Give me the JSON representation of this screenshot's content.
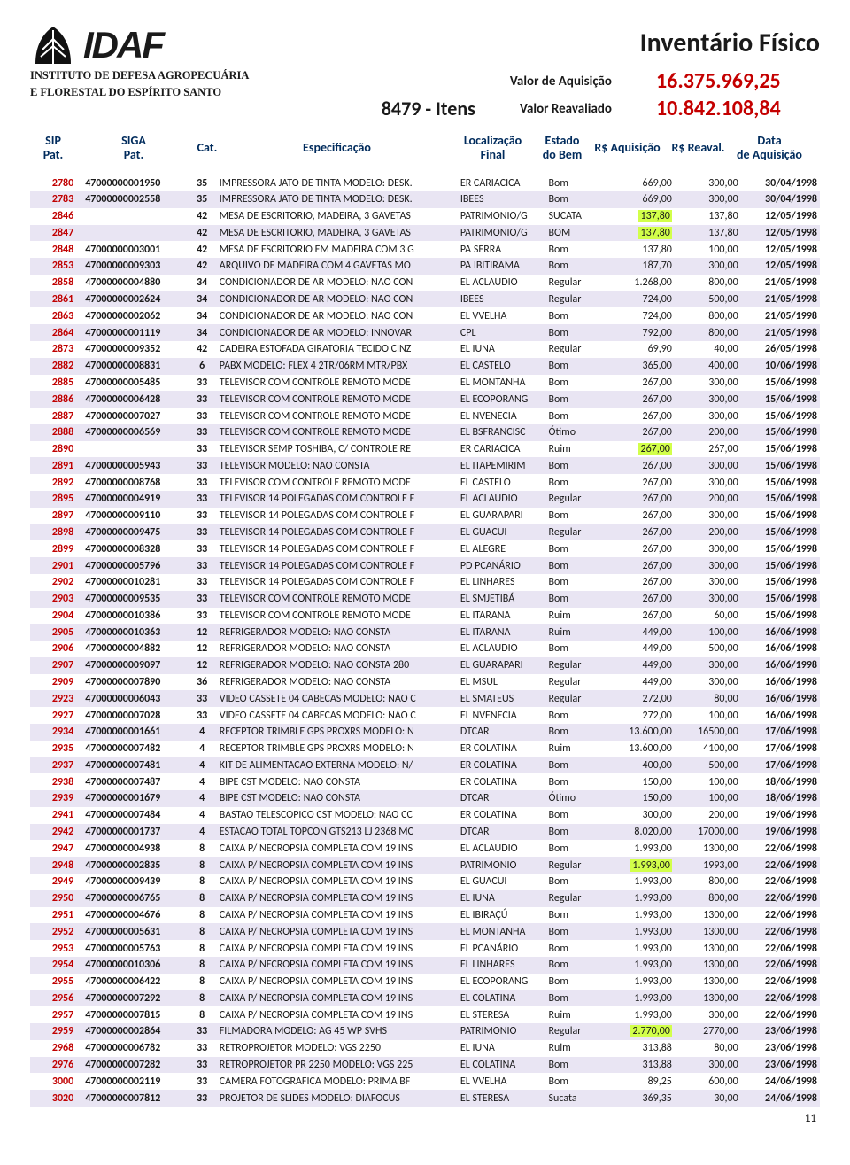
{
  "header": {
    "logo_text": "IDAF",
    "org_line1": "INSTITUTO DE DEFESA AGROPECUÁRIA",
    "org_line2": "E FLORESTAL DO ESPÍRITO SANTO",
    "main_title": "Inventário Físico",
    "itens_count": "8479 - Itens",
    "valor_aquisicao_label": "Valor de Aquisição",
    "valor_aquisicao": "16.375.969,25",
    "valor_reavaliado_label": "Valor Reavaliado",
    "valor_reavaliado": "10.842.108,84"
  },
  "columns": {
    "sip": "SIP Pat.",
    "siga": "SIGA Pat.",
    "cat": "Cat.",
    "esp": "Especificação",
    "loc": "Localização Final",
    "est": "Estado do Bem",
    "aq": "R$ Aquisição",
    "rv": "R$ Reaval.",
    "dt": "Data de Aquisição"
  },
  "page_number": "11",
  "highlight_color": "#d2ff4a",
  "rows": [
    {
      "sip": "2780",
      "siga": "47000000001950",
      "cat": "35",
      "esp": "IMPRESSORA JATO DE TINTA MODELO: DESK.",
      "loc": "ER CARIACICA",
      "est": "Bom",
      "aq": "669,00",
      "rv": "300,00",
      "dt": "30/04/1998"
    },
    {
      "sip": "2783",
      "siga": "47000000002558",
      "cat": "35",
      "esp": "IMPRESSORA JATO DE TINTA MODELO: DESK.",
      "loc": "IBEES",
      "est": "Bom",
      "aq": "669,00",
      "rv": "300,00",
      "dt": "30/04/1998"
    },
    {
      "sip": "2846",
      "siga": "",
      "cat": "42",
      "esp": "MESA DE ESCRITORIO, MADEIRA, 3 GAVETAS",
      "loc": "PATRIMONIO/G",
      "est": "SUCATA",
      "aq": "137,80",
      "rv": "137,80",
      "dt": "12/05/1998",
      "hl_aq": true
    },
    {
      "sip": "2847",
      "siga": "",
      "cat": "42",
      "esp": "MESA DE ESCRITORIO, MADEIRA, 3 GAVETAS",
      "loc": "PATRIMONIO/G",
      "est": "BOM",
      "aq": "137,80",
      "rv": "137,80",
      "dt": "12/05/1998",
      "hl_aq": true
    },
    {
      "sip": "2848",
      "siga": "47000000003001",
      "cat": "42",
      "esp": "MESA DE ESCRITORIO EM MADEIRA COM 3 G",
      "loc": "PA SERRA",
      "est": "Bom",
      "aq": "137,80",
      "rv": "100,00",
      "dt": "12/05/1998"
    },
    {
      "sip": "2853",
      "siga": "47000000009303",
      "cat": "42",
      "esp": "ARQUIVO DE MADEIRA COM 4 GAVETAS MO",
      "loc": "PA IBITIRAMA",
      "est": "Bom",
      "aq": "187,70",
      "rv": "300,00",
      "dt": "12/05/1998"
    },
    {
      "sip": "2858",
      "siga": "47000000004880",
      "cat": "34",
      "esp": "CONDICIONADOR DE AR MODELO: NAO CON",
      "loc": "EL ACLAUDIO",
      "est": "Regular",
      "aq": "1.268,00",
      "rv": "800,00",
      "dt": "21/05/1998"
    },
    {
      "sip": "2861",
      "siga": "47000000002624",
      "cat": "34",
      "esp": "CONDICIONADOR DE AR MODELO: NAO CON",
      "loc": "IBEES",
      "est": "Regular",
      "aq": "724,00",
      "rv": "500,00",
      "dt": "21/05/1998"
    },
    {
      "sip": "2863",
      "siga": "47000000002062",
      "cat": "34",
      "esp": "CONDICIONADOR DE AR MODELO: NAO CON",
      "loc": "EL VVELHA",
      "est": "Bom",
      "aq": "724,00",
      "rv": "800,00",
      "dt": "21/05/1998"
    },
    {
      "sip": "2864",
      "siga": "47000000001119",
      "cat": "34",
      "esp": "CONDICIONADOR DE AR MODELO: INNOVAR",
      "loc": "CPL",
      "est": "Bom",
      "aq": "792,00",
      "rv": "800,00",
      "dt": "21/05/1998"
    },
    {
      "sip": "2873",
      "siga": "47000000009352",
      "cat": "42",
      "esp": "CADEIRA ESTOFADA GIRATORIA TECIDO CINZ",
      "loc": "EL IUNA",
      "est": "Regular",
      "aq": "69,90",
      "rv": "40,00",
      "dt": "26/05/1998"
    },
    {
      "sip": "2882",
      "siga": "47000000008831",
      "cat": "6",
      "esp": "PABX MODELO: FLEX 4 2TR/06RM MTR/PBX",
      "loc": "EL CASTELO",
      "est": "Bom",
      "aq": "365,00",
      "rv": "400,00",
      "dt": "10/06/1998"
    },
    {
      "sip": "2885",
      "siga": "47000000005485",
      "cat": "33",
      "esp": "TELEVISOR COM CONTROLE REMOTO MODE",
      "loc": "EL MONTANHA",
      "est": "Bom",
      "aq": "267,00",
      "rv": "300,00",
      "dt": "15/06/1998"
    },
    {
      "sip": "2886",
      "siga": "47000000006428",
      "cat": "33",
      "esp": "TELEVISOR COM CONTROLE REMOTO MODE",
      "loc": "EL ECOPORANG",
      "est": "Bom",
      "aq": "267,00",
      "rv": "300,00",
      "dt": "15/06/1998"
    },
    {
      "sip": "2887",
      "siga": "47000000007027",
      "cat": "33",
      "esp": "TELEVISOR COM CONTROLE REMOTO MODE",
      "loc": "EL NVENECIA",
      "est": "Bom",
      "aq": "267,00",
      "rv": "300,00",
      "dt": "15/06/1998"
    },
    {
      "sip": "2888",
      "siga": "47000000006569",
      "cat": "33",
      "esp": "TELEVISOR COM CONTROLE REMOTO MODE",
      "loc": "EL BSFRANCISC",
      "est": "Ótimo",
      "aq": "267,00",
      "rv": "200,00",
      "dt": "15/06/1998"
    },
    {
      "sip": "2890",
      "siga": "",
      "cat": "33",
      "esp": "TELEVISOR SEMP TOSHIBA, C/ CONTROLE RE",
      "loc": "ER CARIACICA",
      "est": "Ruim",
      "aq": "267,00",
      "rv": "267,00",
      "dt": "15/06/1998",
      "hl_aq": true
    },
    {
      "sip": "2891",
      "siga": "47000000005943",
      "cat": "33",
      "esp": "TELEVISOR MODELO: NAO CONSTA",
      "loc": "EL ITAPEMIRIM",
      "est": "Bom",
      "aq": "267,00",
      "rv": "300,00",
      "dt": "15/06/1998"
    },
    {
      "sip": "2892",
      "siga": "47000000008768",
      "cat": "33",
      "esp": "TELEVISOR COM CONTROLE REMOTO MODE",
      "loc": "EL CASTELO",
      "est": "Bom",
      "aq": "267,00",
      "rv": "300,00",
      "dt": "15/06/1998"
    },
    {
      "sip": "2895",
      "siga": "47000000004919",
      "cat": "33",
      "esp": "TELEVISOR 14 POLEGADAS COM CONTROLE F",
      "loc": "EL ACLAUDIO",
      "est": "Regular",
      "aq": "267,00",
      "rv": "200,00",
      "dt": "15/06/1998"
    },
    {
      "sip": "2897",
      "siga": "47000000009110",
      "cat": "33",
      "esp": "TELEVISOR 14 POLEGADAS COM CONTROLE F",
      "loc": "EL GUARAPARI",
      "est": "Bom",
      "aq": "267,00",
      "rv": "300,00",
      "dt": "15/06/1998"
    },
    {
      "sip": "2898",
      "siga": "47000000009475",
      "cat": "33",
      "esp": "TELEVISOR 14 POLEGADAS COM CONTROLE F",
      "loc": "EL GUACUI",
      "est": "Regular",
      "aq": "267,00",
      "rv": "200,00",
      "dt": "15/06/1998"
    },
    {
      "sip": "2899",
      "siga": "47000000008328",
      "cat": "33",
      "esp": "TELEVISOR 14 POLEGADAS COM CONTROLE F",
      "loc": "EL ALEGRE",
      "est": "Bom",
      "aq": "267,00",
      "rv": "300,00",
      "dt": "15/06/1998"
    },
    {
      "sip": "2901",
      "siga": "47000000005796",
      "cat": "33",
      "esp": "TELEVISOR 14 POLEGADAS COM CONTROLE F",
      "loc": "PD PCANÁRIO",
      "est": "Bom",
      "aq": "267,00",
      "rv": "300,00",
      "dt": "15/06/1998"
    },
    {
      "sip": "2902",
      "siga": "47000000010281",
      "cat": "33",
      "esp": "TELEVISOR 14 POLEGADAS COM CONTROLE F",
      "loc": "EL LINHARES",
      "est": "Bom",
      "aq": "267,00",
      "rv": "300,00",
      "dt": "15/06/1998"
    },
    {
      "sip": "2903",
      "siga": "47000000009535",
      "cat": "33",
      "esp": "TELEVISOR COM CONTROLE REMOTO MODE",
      "loc": "EL SMJETIBÁ",
      "est": "Bom",
      "aq": "267,00",
      "rv": "300,00",
      "dt": "15/06/1998"
    },
    {
      "sip": "2904",
      "siga": "47000000010386",
      "cat": "33",
      "esp": "TELEVISOR COM CONTROLE REMOTO MODE",
      "loc": "EL ITARANA",
      "est": "Ruim",
      "aq": "267,00",
      "rv": "60,00",
      "dt": "15/06/1998"
    },
    {
      "sip": "2905",
      "siga": "47000000010363",
      "cat": "12",
      "esp": "REFRIGERADOR MODELO: NAO CONSTA",
      "loc": "EL ITARANA",
      "est": "Ruim",
      "aq": "449,00",
      "rv": "100,00",
      "dt": "16/06/1998"
    },
    {
      "sip": "2906",
      "siga": "47000000004882",
      "cat": "12",
      "esp": "REFRIGERADOR MODELO: NAO CONSTA",
      "loc": "EL ACLAUDIO",
      "est": "Bom",
      "aq": "449,00",
      "rv": "500,00",
      "dt": "16/06/1998"
    },
    {
      "sip": "2907",
      "siga": "47000000009097",
      "cat": "12",
      "esp": "REFRIGERADOR MODELO: NAO CONSTA 280",
      "loc": "EL GUARAPARI",
      "est": "Regular",
      "aq": "449,00",
      "rv": "300,00",
      "dt": "16/06/1998"
    },
    {
      "sip": "2909",
      "siga": "47000000007890",
      "cat": "36",
      "esp": "REFRIGERADOR MODELO: NAO CONSTA",
      "loc": "EL MSUL",
      "est": "Regular",
      "aq": "449,00",
      "rv": "300,00",
      "dt": "16/06/1998"
    },
    {
      "sip": "2923",
      "siga": "47000000006043",
      "cat": "33",
      "esp": "VIDEO CASSETE 04 CABECAS MODELO: NAO C",
      "loc": "EL SMATEUS",
      "est": "Regular",
      "aq": "272,00",
      "rv": "80,00",
      "dt": "16/06/1998"
    },
    {
      "sip": "2927",
      "siga": "47000000007028",
      "cat": "33",
      "esp": "VIDEO CASSETE 04 CABECAS MODELO: NAO C",
      "loc": "EL NVENECIA",
      "est": "Bom",
      "aq": "272,00",
      "rv": "100,00",
      "dt": "16/06/1998"
    },
    {
      "sip": "2934",
      "siga": "47000000001661",
      "cat": "4",
      "esp": "RECEPTOR TRIMBLE GPS PROXRS MODELO: N",
      "loc": "DTCAR",
      "est": "Bom",
      "aq": "13.600,00",
      "rv": "16500,00",
      "dt": "17/06/1998"
    },
    {
      "sip": "2935",
      "siga": "47000000007482",
      "cat": "4",
      "esp": "RECEPTOR TRIMBLE GPS PROXRS MODELO: N",
      "loc": "ER COLATINA",
      "est": "Ruim",
      "aq": "13.600,00",
      "rv": "4100,00",
      "dt": "17/06/1998"
    },
    {
      "sip": "2937",
      "siga": "47000000007481",
      "cat": "4",
      "esp": "KIT DE ALIMENTACAO EXTERNA MODELO: N/",
      "loc": "ER COLATINA",
      "est": "Bom",
      "aq": "400,00",
      "rv": "500,00",
      "dt": "17/06/1998"
    },
    {
      "sip": "2938",
      "siga": "47000000007487",
      "cat": "4",
      "esp": "BIPE CST MODELO: NAO CONSTA",
      "loc": "ER COLATINA",
      "est": "Bom",
      "aq": "150,00",
      "rv": "100,00",
      "dt": "18/06/1998"
    },
    {
      "sip": "2939",
      "siga": "47000000001679",
      "cat": "4",
      "esp": "BIPE CST MODELO: NAO CONSTA",
      "loc": "DTCAR",
      "est": "Ótimo",
      "aq": "150,00",
      "rv": "100,00",
      "dt": "18/06/1998"
    },
    {
      "sip": "2941",
      "siga": "47000000007484",
      "cat": "4",
      "esp": "BASTAO TELESCOPICO CST MODELO: NAO CC",
      "loc": "ER COLATINA",
      "est": "Bom",
      "aq": "300,00",
      "rv": "200,00",
      "dt": "19/06/1998"
    },
    {
      "sip": "2942",
      "siga": "47000000001737",
      "cat": "4",
      "esp": "ESTACAO TOTAL TOPCON GTS213 LJ 2368 MC",
      "loc": "DTCAR",
      "est": "Bom",
      "aq": "8.020,00",
      "rv": "17000,00",
      "dt": "19/06/1998"
    },
    {
      "sip": "2947",
      "siga": "47000000004938",
      "cat": "8",
      "esp": "CAIXA P/ NECROPSIA COMPLETA COM 19 INS",
      "loc": "EL ACLAUDIO",
      "est": "Bom",
      "aq": "1.993,00",
      "rv": "1300,00",
      "dt": "22/06/1998"
    },
    {
      "sip": "2948",
      "siga": "47000000002835",
      "cat": "8",
      "esp": "CAIXA P/ NECROPSIA COMPLETA COM 19 INS",
      "loc": "PATRIMONIO",
      "est": "Regular",
      "aq": "1.993,00",
      "rv": "1993,00",
      "dt": "22/06/1998",
      "hl_aq": true
    },
    {
      "sip": "2949",
      "siga": "47000000009439",
      "cat": "8",
      "esp": "CAIXA P/ NECROPSIA COMPLETA COM 19 INS",
      "loc": "EL GUACUI",
      "est": "Bom",
      "aq": "1.993,00",
      "rv": "800,00",
      "dt": "22/06/1998"
    },
    {
      "sip": "2950",
      "siga": "47000000006765",
      "cat": "8",
      "esp": "CAIXA P/ NECROPSIA COMPLETA COM 19 INS",
      "loc": "EL IUNA",
      "est": "Regular",
      "aq": "1.993,00",
      "rv": "800,00",
      "dt": "22/06/1998"
    },
    {
      "sip": "2951",
      "siga": "47000000004676",
      "cat": "8",
      "esp": "CAIXA P/ NECROPSIA COMPLETA COM 19 INS",
      "loc": "EL IBIRAÇÚ",
      "est": "Bom",
      "aq": "1.993,00",
      "rv": "1300,00",
      "dt": "22/06/1998"
    },
    {
      "sip": "2952",
      "siga": "47000000005631",
      "cat": "8",
      "esp": "CAIXA P/ NECROPSIA COMPLETA COM 19 INS",
      "loc": "EL MONTANHA",
      "est": "Bom",
      "aq": "1.993,00",
      "rv": "1300,00",
      "dt": "22/06/1998"
    },
    {
      "sip": "2953",
      "siga": "47000000005763",
      "cat": "8",
      "esp": "CAIXA P/ NECROPSIA COMPLETA COM 19 INS",
      "loc": "EL PCANÁRIO",
      "est": "Bom",
      "aq": "1.993,00",
      "rv": "1300,00",
      "dt": "22/06/1998"
    },
    {
      "sip": "2954",
      "siga": "47000000010306",
      "cat": "8",
      "esp": "CAIXA P/ NECROPSIA COMPLETA COM 19 INS",
      "loc": "EL LINHARES",
      "est": "Bom",
      "aq": "1.993,00",
      "rv": "1300,00",
      "dt": "22/06/1998"
    },
    {
      "sip": "2955",
      "siga": "47000000006422",
      "cat": "8",
      "esp": "CAIXA P/ NECROPSIA COMPLETA COM 19 INS",
      "loc": "EL ECOPORANG",
      "est": "Bom",
      "aq": "1.993,00",
      "rv": "1300,00",
      "dt": "22/06/1998"
    },
    {
      "sip": "2956",
      "siga": "47000000007292",
      "cat": "8",
      "esp": "CAIXA P/ NECROPSIA COMPLETA COM 19 INS",
      "loc": "EL COLATINA",
      "est": "Bom",
      "aq": "1.993,00",
      "rv": "1300,00",
      "dt": "22/06/1998"
    },
    {
      "sip": "2957",
      "siga": "47000000007815",
      "cat": "8",
      "esp": "CAIXA P/ NECROPSIA COMPLETA COM 19 INS",
      "loc": "EL STERESA",
      "est": "Ruim",
      "aq": "1.993,00",
      "rv": "300,00",
      "dt": "22/06/1998"
    },
    {
      "sip": "2959",
      "siga": "47000000002864",
      "cat": "33",
      "esp": "FILMADORA MODELO: AG 45 WP SVHS",
      "loc": "PATRIMONIO",
      "est": "Regular",
      "aq": "2.770,00",
      "rv": "2770,00",
      "dt": "23/06/1998",
      "hl_aq": true
    },
    {
      "sip": "2968",
      "siga": "47000000006782",
      "cat": "33",
      "esp": "RETROPROJETOR MODELO: VGS 2250",
      "loc": "EL IUNA",
      "est": "Ruim",
      "aq": "313,88",
      "rv": "80,00",
      "dt": "23/06/1998"
    },
    {
      "sip": "2976",
      "siga": "47000000007282",
      "cat": "33",
      "esp": "RETROPROJETOR PR 2250 MODELO: VGS 225",
      "loc": "EL COLATINA",
      "est": "Bom",
      "aq": "313,88",
      "rv": "300,00",
      "dt": "23/06/1998"
    },
    {
      "sip": "3000",
      "siga": "47000000002119",
      "cat": "33",
      "esp": "CAMERA FOTOGRAFICA MODELO: PRIMA BF",
      "loc": "EL VVELHA",
      "est": "Bom",
      "aq": "89,25",
      "rv": "600,00",
      "dt": "24/06/1998"
    },
    {
      "sip": "3020",
      "siga": "47000000007812",
      "cat": "33",
      "esp": "PROJETOR DE SLIDES MODELO: DIAFOCUS",
      "loc": "EL STERESA",
      "est": "Sucata",
      "aq": "369,35",
      "rv": "30,00",
      "dt": "24/06/1998"
    }
  ]
}
